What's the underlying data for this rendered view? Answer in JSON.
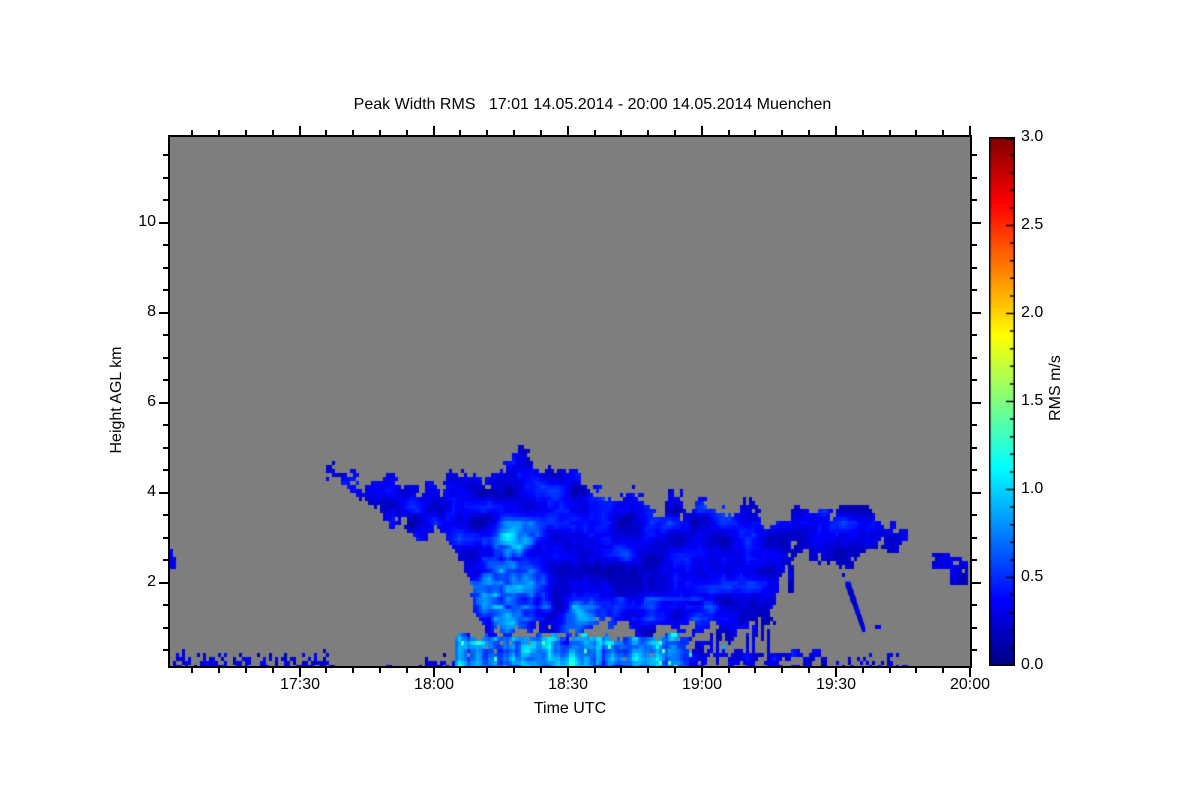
{
  "chart_data": {
    "type": "heatmap",
    "title": "Peak Width RMS   17:01 14.05.2014 - 20:00 14.05.2014 Muenchen",
    "instrument_location": "Muenchen",
    "time_span": "17:01 14.05.2014 - 20:00 14.05.2014",
    "x_axis": {
      "label": "Time UTC",
      "start_hour": 17.0167,
      "end_hour": 20.0,
      "major_ticks": [
        {
          "hour": 17.5,
          "label": "17:30"
        },
        {
          "hour": 18.0,
          "label": "18:00"
        },
        {
          "hour": 18.5,
          "label": "18:30"
        },
        {
          "hour": 19.0,
          "label": "19:00"
        },
        {
          "hour": 19.5,
          "label": "19:30"
        },
        {
          "hour": 20.0,
          "label": "20:00"
        }
      ],
      "minor_tick_interval_hours": 0.1
    },
    "y_axis": {
      "label": "Height AGL km",
      "min_km": 0.15,
      "max_km": 11.9,
      "major_ticks": [
        {
          "km": 2,
          "label": "2"
        },
        {
          "km": 4,
          "label": "4"
        },
        {
          "km": 6,
          "label": "6"
        },
        {
          "km": 8,
          "label": "8"
        },
        {
          "km": 10,
          "label": "10"
        }
      ],
      "minor_tick_interval_km": 0.5
    },
    "colorbar": {
      "label": "RMS m/s",
      "min": 0,
      "max": 3,
      "major_ticks": [
        {
          "value": 0.0,
          "label": "0.0"
        },
        {
          "value": 0.5,
          "label": "0.5"
        },
        {
          "value": 1.0,
          "label": "1.0"
        },
        {
          "value": 1.5,
          "label": "1.5"
        },
        {
          "value": 2.0,
          "label": "2.0"
        },
        {
          "value": 2.5,
          "label": "2.5"
        },
        {
          "value": 3.0,
          "label": "3.0"
        }
      ],
      "minor_tick_interval": 0.1,
      "colormap": "jet",
      "jet_stops": [
        [
          0.0,
          [
            0,
            0,
            131
          ]
        ],
        [
          0.125,
          [
            0,
            0,
            255
          ]
        ],
        [
          0.375,
          [
            0,
            255,
            255
          ]
        ],
        [
          0.625,
          [
            255,
            255,
            0
          ]
        ],
        [
          0.875,
          [
            255,
            0,
            0
          ]
        ],
        [
          1.0,
          [
            128,
            0,
            0
          ]
        ]
      ]
    },
    "no_data_color": "#7e7e7e",
    "features": {
      "cloud": {
        "t_range": [
          17.595,
          19.78
        ],
        "typical_value_ms": [
          0.1,
          0.6
        ],
        "top_edge": [
          [
            17.595,
            4.6
          ],
          [
            17.625,
            4.78
          ],
          [
            17.66,
            4.5
          ],
          [
            17.7,
            4.42
          ],
          [
            17.78,
            4.2
          ],
          [
            17.86,
            4.33
          ],
          [
            17.95,
            4.27
          ],
          [
            18.05,
            4.35
          ],
          [
            18.14,
            4.45
          ],
          [
            18.22,
            4.6
          ],
          [
            18.3,
            4.85
          ],
          [
            18.38,
            4.72
          ],
          [
            18.47,
            4.5
          ],
          [
            18.56,
            4.35
          ],
          [
            18.65,
            4.2
          ],
          [
            18.73,
            4.02
          ],
          [
            18.81,
            3.85
          ],
          [
            18.89,
            3.7
          ],
          [
            18.97,
            3.8
          ],
          [
            19.05,
            3.74
          ],
          [
            19.12,
            3.88
          ],
          [
            19.2,
            3.7
          ],
          [
            19.28,
            3.56
          ],
          [
            19.37,
            3.72
          ],
          [
            19.46,
            3.6
          ],
          [
            19.53,
            3.52
          ],
          [
            19.6,
            3.75
          ],
          [
            19.68,
            3.5
          ],
          [
            19.75,
            3.35
          ],
          [
            19.78,
            3.1
          ]
        ],
        "bottom_edge": [
          [
            17.595,
            4.4
          ],
          [
            17.65,
            4.1
          ],
          [
            17.71,
            3.8
          ],
          [
            17.77,
            3.5
          ],
          [
            17.84,
            3.25
          ],
          [
            17.93,
            3.02
          ],
          [
            18.0,
            2.92
          ],
          [
            18.06,
            2.82
          ],
          [
            18.1,
            2.55
          ],
          [
            18.13,
            1.9
          ],
          [
            18.16,
            1.0
          ],
          [
            18.2,
            0.82
          ],
          [
            18.4,
            0.8
          ],
          [
            18.6,
            0.82
          ],
          [
            18.8,
            0.88
          ],
          [
            19.0,
            0.92
          ],
          [
            19.12,
            0.86
          ],
          [
            19.2,
            0.98
          ],
          [
            19.26,
            1.3
          ],
          [
            19.3,
            2.0
          ],
          [
            19.34,
            2.8
          ],
          [
            19.42,
            2.52
          ],
          [
            19.5,
            2.28
          ],
          [
            19.58,
            2.42
          ],
          [
            19.66,
            2.55
          ],
          [
            19.73,
            2.72
          ],
          [
            19.78,
            2.9
          ]
        ]
      },
      "cores": [
        {
          "t": 18.28,
          "h": 1.9,
          "rt": 0.17,
          "rh": 1.3,
          "boost": 0.55
        },
        {
          "t": 18.31,
          "h": 3.05,
          "rt": 0.1,
          "rh": 0.5,
          "boost": 0.3
        },
        {
          "t": 18.62,
          "h": 1.15,
          "rt": 0.18,
          "rh": 0.45,
          "boost": 0.25
        }
      ],
      "bottom_mottle": {
        "t_range": [
          18.38,
          19.18
        ],
        "h_max": 1.7,
        "boost": 0.35
      },
      "surface_band": {
        "t_range": [
          18.08,
          19.47
        ],
        "bright_until": 18.95,
        "top_km": 0.8,
        "fade_top_km": 0.5,
        "bright_value_ms": [
          0.6,
          2.2
        ],
        "dark_value_ms": [
          0.1,
          0.5
        ]
      },
      "speckle_segments": [
        {
          "t_range": [
            17.03,
            17.64
          ],
          "p": 0.5,
          "h_max": 0.5
        },
        {
          "t_range": [
            17.66,
            17.93
          ],
          "p": 0.07,
          "h_max": 0.35
        },
        {
          "t_range": [
            17.95,
            18.08
          ],
          "p": 0.45,
          "h_max": 0.55
        },
        {
          "t_range": [
            19.48,
            19.78
          ],
          "p": 0.16,
          "h_max": 0.45
        }
      ],
      "virga": {
        "t_range": [
          18.92,
          19.36
        ],
        "col_prob": 0.35,
        "max_depth_km": 1.1
      },
      "blobs": [
        {
          "t_range": [
            18.875,
            18.935
          ],
          "h_range": [
            3.62,
            4.05
          ]
        },
        {
          "t_range": [
            17.017,
            17.042
          ],
          "h_range": [
            2.28,
            2.55
          ]
        },
        {
          "t_range": [
            17.017,
            17.03
          ],
          "h_range": [
            2.6,
            2.74
          ]
        },
        {
          "t_range": [
            19.855,
            19.925
          ],
          "h_range": [
            2.3,
            2.68
          ]
        },
        {
          "t_range": [
            19.93,
            19.995
          ],
          "h_range": [
            1.92,
            2.58
          ]
        },
        {
          "t_range": [
            19.498,
            19.53
          ],
          "h_range": [
            1.18,
            1.45
          ]
        },
        {
          "t_range": [
            19.645,
            19.665
          ],
          "h_range": [
            0.95,
            1.1
          ]
        }
      ],
      "fall_streak": {
        "from": [
          19.545,
          1.98
        ],
        "to": [
          19.605,
          0.95
        ]
      }
    }
  }
}
